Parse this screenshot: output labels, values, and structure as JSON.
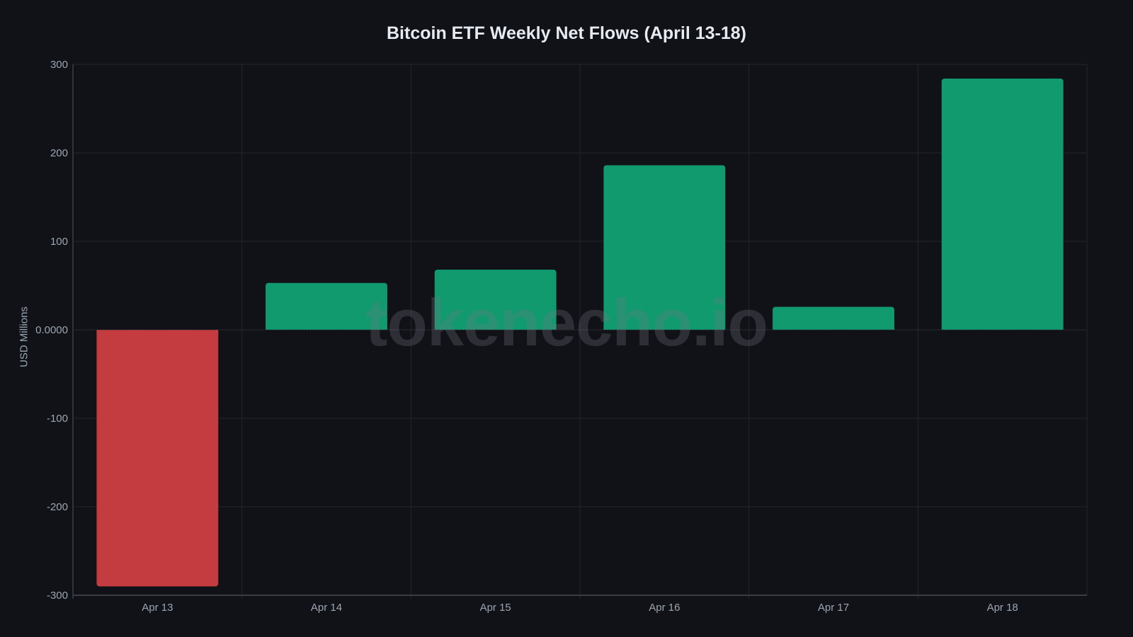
{
  "chart_data": {
    "type": "bar",
    "title": "Bitcoin ETF Weekly Net Flows (April 13-18)",
    "xlabel": "",
    "ylabel": "USD Millions",
    "categories": [
      "Apr 13",
      "Apr 14",
      "Apr 15",
      "Apr 16",
      "Apr 17",
      "Apr 18"
    ],
    "values": [
      -290,
      53,
      68,
      186,
      26,
      284
    ],
    "ylim": [
      -300,
      300
    ],
    "yticks": [
      300,
      200,
      100,
      0,
      -100,
      -200,
      -300
    ],
    "ytick_labels": [
      "300",
      "200",
      "100",
      "0.0000",
      "-100",
      "-200",
      "-300"
    ],
    "grid": true,
    "legend": null,
    "colors": {
      "positive": "#109a6d",
      "negative": "#c43c3f"
    },
    "watermark": "tokenecho.io"
  },
  "theme": {
    "background": "#111217",
    "grid": "#23252c",
    "axis": "#3a3d45",
    "tick_text": "#9aa6b2"
  }
}
